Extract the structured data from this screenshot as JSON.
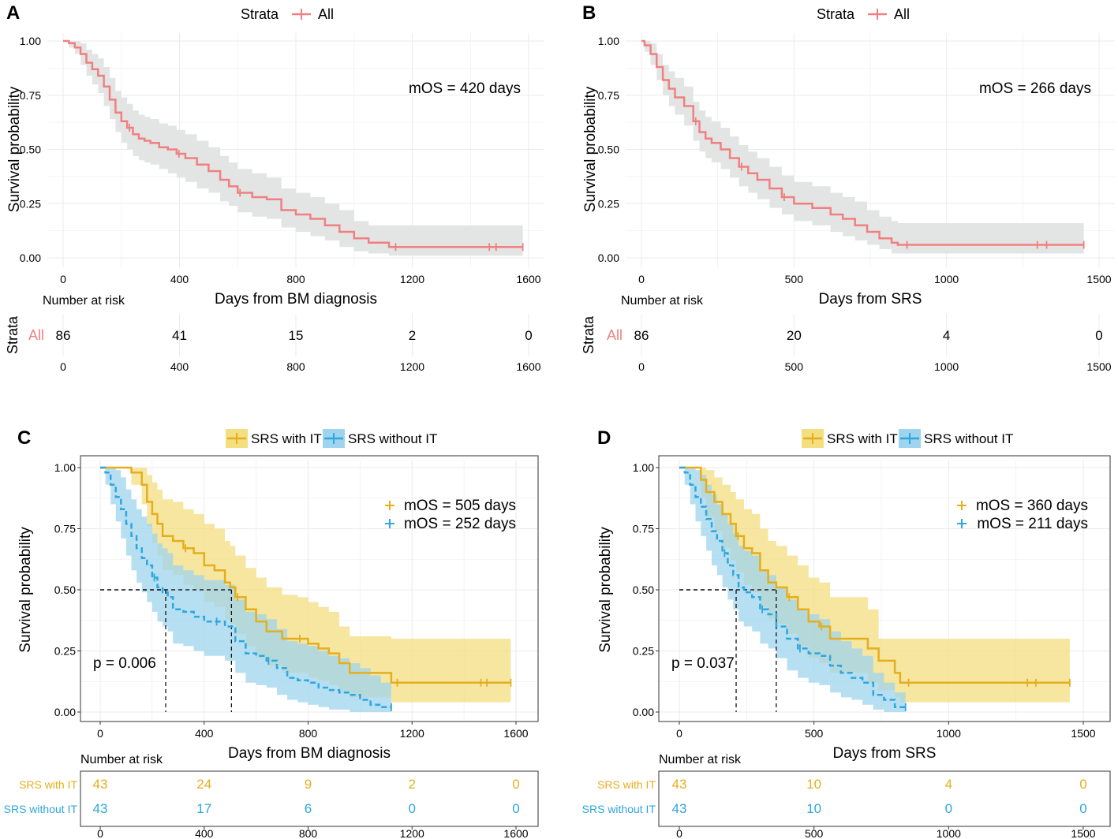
{
  "colors": {
    "all": "#F08080",
    "with_it": "#E5AE1E",
    "without_it": "#2EA6DE",
    "ci_all": "#E3E5E5",
    "ci_with_it": "#F3DE80",
    "ci_without_it": "#9FD4EE",
    "overlap": "#9FC8A0",
    "grid": "#EBEBEB"
  },
  "chart_data": [
    {
      "id": "A",
      "type": "line",
      "panel_label": "A",
      "legend": {
        "title": "Strata",
        "entries": [
          "All"
        ]
      },
      "xlabel": "Days from BM diagnosis",
      "ylabel": "Survival probability",
      "xlim": [
        0,
        1600
      ],
      "ylim": [
        0,
        1
      ],
      "xticks": [
        0,
        400,
        800,
        1200,
        1600
      ],
      "yticks": [
        0.0,
        0.25,
        0.5,
        0.75,
        1.0
      ],
      "ytick_labels": [
        "0.00",
        "0.25",
        "0.50",
        "0.75",
        "1.00"
      ],
      "annotation": "mOS = 420 days",
      "series": [
        {
          "name": "All",
          "x": [
            0,
            20,
            40,
            60,
            80,
            100,
            120,
            140,
            160,
            180,
            200,
            220,
            240,
            260,
            280,
            300,
            330,
            360,
            390,
            420,
            460,
            500,
            540,
            570,
            600,
            650,
            700,
            750,
            800,
            850,
            900,
            950,
            1000,
            1050,
            1100,
            1120,
            1580
          ],
          "y": [
            1.0,
            0.99,
            0.97,
            0.94,
            0.9,
            0.87,
            0.84,
            0.79,
            0.73,
            0.67,
            0.63,
            0.6,
            0.57,
            0.55,
            0.54,
            0.53,
            0.51,
            0.5,
            0.48,
            0.46,
            0.43,
            0.4,
            0.36,
            0.33,
            0.3,
            0.28,
            0.27,
            0.22,
            0.2,
            0.18,
            0.15,
            0.12,
            0.09,
            0.07,
            0.07,
            0.05,
            0.05
          ],
          "lower": [
            1.0,
            0.97,
            0.94,
            0.89,
            0.84,
            0.8,
            0.76,
            0.7,
            0.64,
            0.58,
            0.53,
            0.5,
            0.47,
            0.45,
            0.44,
            0.43,
            0.41,
            0.39,
            0.37,
            0.35,
            0.32,
            0.3,
            0.26,
            0.24,
            0.21,
            0.19,
            0.18,
            0.14,
            0.12,
            0.1,
            0.08,
            0.05,
            0.03,
            0.02,
            0.02,
            0.01,
            0.01
          ],
          "upper": [
            1.0,
            1.0,
            1.0,
            0.99,
            0.96,
            0.94,
            0.92,
            0.88,
            0.83,
            0.77,
            0.74,
            0.71,
            0.68,
            0.66,
            0.65,
            0.64,
            0.62,
            0.61,
            0.59,
            0.57,
            0.54,
            0.51,
            0.47,
            0.44,
            0.41,
            0.39,
            0.37,
            0.32,
            0.3,
            0.28,
            0.25,
            0.22,
            0.17,
            0.15,
            0.15,
            0.15,
            0.15
          ]
        }
      ],
      "risk_table": {
        "title": "Number at risk",
        "ylabel": "Strata",
        "rows": [
          {
            "label": "All",
            "values": [
              "86",
              "41",
              "15",
              "2",
              "0"
            ]
          }
        ],
        "xticks": [
          0,
          400,
          800,
          1200,
          1600
        ]
      }
    },
    {
      "id": "B",
      "type": "line",
      "panel_label": "B",
      "legend": {
        "title": "Strata",
        "entries": [
          "All"
        ]
      },
      "xlabel": "Days from SRS",
      "ylabel": "Survival probability",
      "xlim": [
        0,
        1500
      ],
      "ylim": [
        0,
        1
      ],
      "xticks": [
        0,
        500,
        1000,
        1500
      ],
      "yticks": [
        0.0,
        0.25,
        0.5,
        0.75,
        1.0
      ],
      "ytick_labels": [
        "0.00",
        "0.25",
        "0.50",
        "0.75",
        "1.00"
      ],
      "annotation": "mOS = 266 days",
      "series": [
        {
          "name": "All",
          "x": [
            0,
            10,
            30,
            50,
            70,
            90,
            110,
            140,
            170,
            190,
            210,
            230,
            260,
            290,
            320,
            350,
            380,
            420,
            460,
            500,
            560,
            620,
            660,
            700,
            740,
            780,
            820,
            840,
            1450
          ],
          "y": [
            1.0,
            0.98,
            0.94,
            0.88,
            0.82,
            0.78,
            0.74,
            0.7,
            0.63,
            0.58,
            0.55,
            0.53,
            0.5,
            0.46,
            0.42,
            0.39,
            0.36,
            0.32,
            0.28,
            0.25,
            0.23,
            0.2,
            0.18,
            0.15,
            0.12,
            0.09,
            0.07,
            0.06,
            0.06
          ],
          "lower": [
            1.0,
            0.95,
            0.89,
            0.82,
            0.75,
            0.7,
            0.66,
            0.61,
            0.54,
            0.49,
            0.46,
            0.44,
            0.41,
            0.37,
            0.33,
            0.3,
            0.27,
            0.23,
            0.2,
            0.17,
            0.15,
            0.12,
            0.1,
            0.08,
            0.06,
            0.04,
            0.02,
            0.02,
            0.02
          ],
          "upper": [
            1.0,
            1.0,
            0.99,
            0.94,
            0.89,
            0.86,
            0.83,
            0.79,
            0.72,
            0.68,
            0.65,
            0.63,
            0.6,
            0.56,
            0.52,
            0.49,
            0.46,
            0.42,
            0.38,
            0.35,
            0.33,
            0.3,
            0.28,
            0.26,
            0.22,
            0.19,
            0.17,
            0.16,
            0.16
          ]
        }
      ],
      "risk_table": {
        "title": "Number at risk",
        "ylabel": "Strata",
        "rows": [
          {
            "label": "All",
            "values": [
              "86",
              "20",
              "4",
              "0"
            ]
          }
        ],
        "xticks": [
          0,
          500,
          1000,
          1500
        ]
      }
    },
    {
      "id": "C",
      "type": "line",
      "panel_label": "C",
      "legend": {
        "title": "",
        "entries": [
          "SRS with IT",
          "SRS without IT"
        ]
      },
      "xlabel": "Days from BM diagnosis",
      "ylabel": "Survival probability",
      "xlim": [
        0,
        1600
      ],
      "ylim": [
        0,
        1
      ],
      "xticks": [
        0,
        400,
        800,
        1200,
        1600
      ],
      "yticks": [
        0.0,
        0.25,
        0.5,
        0.75,
        1.0
      ],
      "ytick_labels": [
        "0.00",
        "0.25",
        "0.50",
        "0.75",
        "1.00"
      ],
      "annotations": [
        "mOS = 505 days",
        "mOS = 252 days"
      ],
      "p_value": "p = 0.006",
      "median_days": [
        505,
        252
      ],
      "series": [
        {
          "name": "SRS with IT",
          "x": [
            0,
            60,
            120,
            160,
            180,
            200,
            220,
            240,
            280,
            320,
            360,
            400,
            440,
            480,
            500,
            520,
            560,
            600,
            640,
            700,
            760,
            800,
            840,
            880,
            920,
            960,
            1000,
            1040,
            1080,
            1120,
            1580
          ],
          "y": [
            1.0,
            1.0,
            0.98,
            0.93,
            0.86,
            0.81,
            0.77,
            0.72,
            0.7,
            0.67,
            0.65,
            0.6,
            0.58,
            0.53,
            0.51,
            0.47,
            0.42,
            0.37,
            0.33,
            0.3,
            0.3,
            0.28,
            0.26,
            0.24,
            0.2,
            0.16,
            0.16,
            0.16,
            0.16,
            0.12,
            0.12
          ],
          "lower": [
            1.0,
            1.0,
            0.93,
            0.85,
            0.76,
            0.69,
            0.64,
            0.58,
            0.56,
            0.52,
            0.5,
            0.45,
            0.43,
            0.38,
            0.36,
            0.32,
            0.27,
            0.22,
            0.19,
            0.16,
            0.16,
            0.14,
            0.13,
            0.11,
            0.08,
            0.06,
            0.06,
            0.06,
            0.06,
            0.04,
            0.04
          ],
          "upper": [
            1.0,
            1.0,
            1.0,
            1.0,
            0.97,
            0.94,
            0.91,
            0.87,
            0.86,
            0.83,
            0.81,
            0.77,
            0.75,
            0.7,
            0.68,
            0.64,
            0.59,
            0.55,
            0.51,
            0.48,
            0.47,
            0.45,
            0.43,
            0.41,
            0.35,
            0.31,
            0.31,
            0.31,
            0.31,
            0.3,
            0.3
          ]
        },
        {
          "name": "SRS without IT",
          "x": [
            0,
            20,
            40,
            60,
            80,
            100,
            120,
            140,
            160,
            180,
            200,
            220,
            240,
            260,
            280,
            320,
            360,
            400,
            440,
            480,
            520,
            560,
            600,
            640,
            680,
            720,
            760,
            800,
            840,
            880,
            920,
            960,
            1000,
            1040,
            1080,
            1120
          ],
          "y": [
            1.0,
            0.98,
            0.93,
            0.88,
            0.83,
            0.77,
            0.72,
            0.67,
            0.63,
            0.6,
            0.55,
            0.51,
            0.49,
            0.47,
            0.42,
            0.41,
            0.39,
            0.37,
            0.37,
            0.35,
            0.29,
            0.24,
            0.23,
            0.21,
            0.18,
            0.14,
            0.13,
            0.12,
            0.1,
            0.09,
            0.08,
            0.07,
            0.05,
            0.03,
            0.02,
            0.02
          ],
          "lower": [
            1.0,
            0.93,
            0.85,
            0.78,
            0.71,
            0.64,
            0.58,
            0.53,
            0.49,
            0.45,
            0.41,
            0.37,
            0.35,
            0.33,
            0.28,
            0.27,
            0.25,
            0.23,
            0.23,
            0.21,
            0.16,
            0.12,
            0.11,
            0.1,
            0.07,
            0.05,
            0.04,
            0.03,
            0.02,
            0.01,
            0.01,
            0.0,
            0.0,
            0.0,
            0.0,
            0.0
          ],
          "upper": [
            1.0,
            1.0,
            1.0,
            0.99,
            0.96,
            0.91,
            0.87,
            0.83,
            0.8,
            0.77,
            0.73,
            0.69,
            0.67,
            0.65,
            0.6,
            0.58,
            0.56,
            0.54,
            0.54,
            0.52,
            0.46,
            0.41,
            0.4,
            0.38,
            0.34,
            0.29,
            0.28,
            0.27,
            0.25,
            0.23,
            0.22,
            0.2,
            0.18,
            0.15,
            0.12,
            0.12
          ]
        }
      ],
      "risk_table": {
        "title": "Number at risk",
        "ylabel": "",
        "rows": [
          {
            "label": "SRS with IT",
            "values": [
              "43",
              "24",
              "9",
              "2",
              "0"
            ]
          },
          {
            "label": "SRS without IT",
            "values": [
              "43",
              "17",
              "6",
              "0",
              "0"
            ]
          }
        ],
        "xticks": [
          0,
          400,
          800,
          1200,
          1600
        ]
      }
    },
    {
      "id": "D",
      "type": "line",
      "panel_label": "D",
      "legend": {
        "title": "",
        "entries": [
          "SRS with IT",
          "SRS without IT"
        ]
      },
      "xlabel": "Days from SRS",
      "ylabel": "Survival probability",
      "xlim": [
        0,
        1500
      ],
      "ylim": [
        0,
        1
      ],
      "xticks": [
        0,
        500,
        1000,
        1500
      ],
      "yticks": [
        0.0,
        0.25,
        0.5,
        0.75,
        1.0
      ],
      "ytick_labels": [
        "0.00",
        "0.25",
        "0.50",
        "0.75",
        "1.00"
      ],
      "annotations": [
        "mOS = 360 days",
        "mOS = 211 days"
      ],
      "p_value": "p = 0.037",
      "median_days": [
        360,
        211
      ],
      "series": [
        {
          "name": "SRS with IT",
          "x": [
            0,
            60,
            80,
            100,
            130,
            160,
            190,
            210,
            240,
            270,
            300,
            330,
            360,
            400,
            440,
            480,
            520,
            560,
            600,
            660,
            700,
            740,
            780,
            800,
            820,
            1450
          ],
          "y": [
            1.0,
            1.0,
            0.95,
            0.9,
            0.86,
            0.81,
            0.77,
            0.72,
            0.67,
            0.65,
            0.58,
            0.53,
            0.51,
            0.47,
            0.42,
            0.37,
            0.35,
            0.3,
            0.3,
            0.3,
            0.26,
            0.21,
            0.21,
            0.16,
            0.12,
            0.12
          ],
          "lower": [
            1.0,
            1.0,
            0.88,
            0.8,
            0.74,
            0.67,
            0.62,
            0.57,
            0.52,
            0.49,
            0.43,
            0.38,
            0.36,
            0.32,
            0.27,
            0.22,
            0.2,
            0.16,
            0.16,
            0.16,
            0.12,
            0.09,
            0.09,
            0.06,
            0.04,
            0.04
          ],
          "upper": [
            1.0,
            1.0,
            1.0,
            0.99,
            0.96,
            0.93,
            0.9,
            0.87,
            0.83,
            0.81,
            0.75,
            0.7,
            0.68,
            0.64,
            0.6,
            0.55,
            0.53,
            0.47,
            0.47,
            0.47,
            0.42,
            0.3,
            0.3,
            0.3,
            0.3,
            0.3
          ]
        },
        {
          "name": "SRS without IT",
          "x": [
            0,
            20,
            40,
            60,
            80,
            100,
            120,
            140,
            160,
            180,
            200,
            220,
            240,
            270,
            300,
            330,
            360,
            400,
            440,
            480,
            520,
            560,
            600,
            640,
            680,
            720,
            760,
            800,
            840
          ],
          "y": [
            1.0,
            0.98,
            0.93,
            0.88,
            0.84,
            0.79,
            0.74,
            0.7,
            0.65,
            0.6,
            0.56,
            0.51,
            0.49,
            0.47,
            0.42,
            0.4,
            0.35,
            0.3,
            0.26,
            0.24,
            0.23,
            0.19,
            0.16,
            0.14,
            0.12,
            0.07,
            0.05,
            0.02,
            0.02
          ],
          "lower": [
            1.0,
            0.93,
            0.85,
            0.78,
            0.72,
            0.66,
            0.6,
            0.56,
            0.51,
            0.46,
            0.42,
            0.37,
            0.35,
            0.33,
            0.28,
            0.26,
            0.22,
            0.17,
            0.14,
            0.12,
            0.11,
            0.08,
            0.06,
            0.05,
            0.03,
            0.01,
            0.0,
            0.0,
            0.0
          ],
          "upper": [
            1.0,
            1.0,
            1.0,
            0.99,
            0.97,
            0.93,
            0.89,
            0.85,
            0.81,
            0.77,
            0.73,
            0.68,
            0.66,
            0.64,
            0.58,
            0.56,
            0.51,
            0.46,
            0.42,
            0.4,
            0.38,
            0.33,
            0.29,
            0.26,
            0.23,
            0.16,
            0.12,
            0.08,
            0.08
          ]
        }
      ],
      "risk_table": {
        "title": "Number at risk",
        "ylabel": "",
        "rows": [
          {
            "label": "SRS with IT",
            "values": [
              "43",
              "10",
              "4",
              "0"
            ]
          },
          {
            "label": "SRS without IT",
            "values": [
              "43",
              "10",
              "0",
              "0"
            ]
          }
        ],
        "xticks": [
          0,
          500,
          1000,
          1500
        ]
      }
    }
  ]
}
